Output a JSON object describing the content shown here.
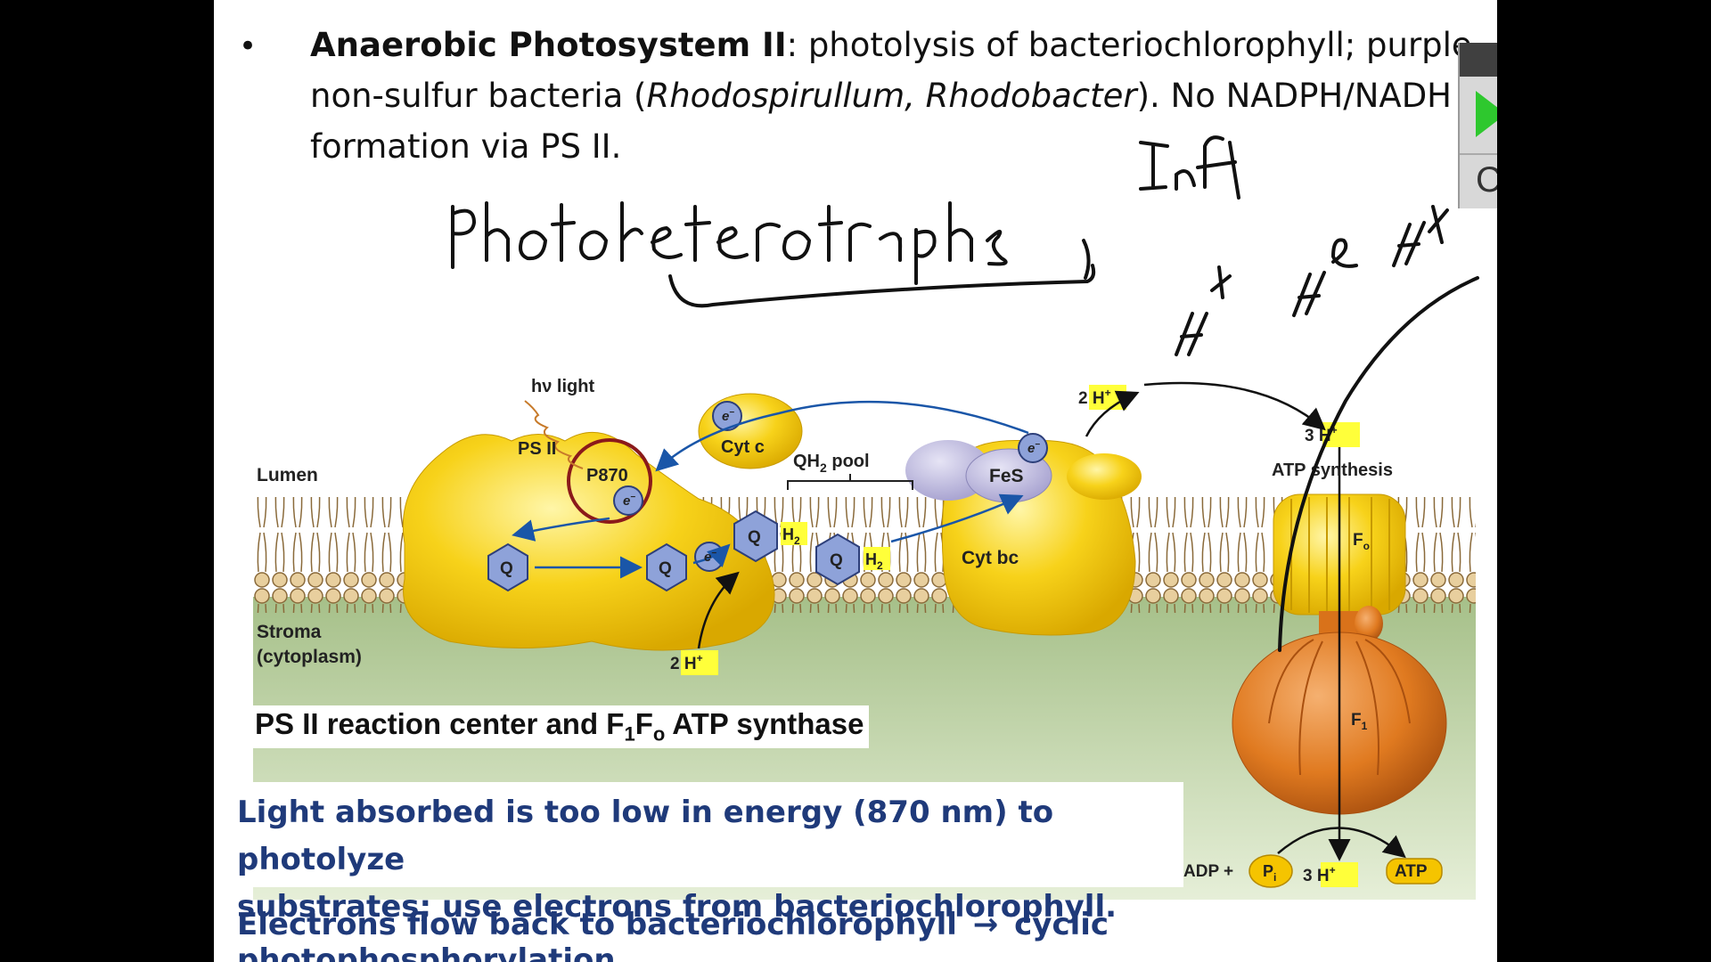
{
  "bullet": {
    "title": "Anaerobic Photosystem II",
    "colon": ":",
    "text_part1": "  photolysis of bacteriochlorophyll; purple non-sulfur bacteria (",
    "genus_italic": "Rhodospirullum, Rhodobacter",
    "text_part2": ").  No NADPH/NADH formation via PS II."
  },
  "diagram": {
    "hv_light": "hν light",
    "ps2": "PS II",
    "p870": "P870",
    "lumen": "Lumen",
    "stroma_1": "Stroma",
    "stroma_2": "(cytoplasm)",
    "cytc": "Cyt c",
    "qh2_pool": "QH",
    "qh2_pool_sub": "2",
    "qh2_pool_word": " pool",
    "fes": "FeS",
    "cytbc": "Cyt bc",
    "q": "Q",
    "h2": "H",
    "h2_sub": "2",
    "electron": "e",
    "electron_sup": "−",
    "two_h": "2 H",
    "three_h": "3 H",
    "h_sup": "+",
    "atp_synthesis": "ATP synthesis",
    "fo": "F",
    "fo_sub": "o",
    "f1": "F",
    "f1_sub": "1",
    "adp": "ADP +",
    "pi": "P",
    "pi_sub": "i",
    "atp": "ATP",
    "colors": {
      "membrane": "#d9b986",
      "protein": "#f5c400",
      "atp_synthase": "#e07a20",
      "arrow_blue": "#1a56a8",
      "p870_ring": "#8b1a1a",
      "stroma_green": "#c8dca8"
    }
  },
  "caption": {
    "part1": "PS II reaction center and F",
    "sub1": "1",
    "part2": "F",
    "sub2": "o",
    "part3": " ATP synthase"
  },
  "note1": {
    "line1": "Light absorbed is too low in energy (870 nm) to photolyze",
    "line2": "substrates; use electrons from bacteriochlorophyll."
  },
  "note2": {
    "part1": "Electrons flow back to bacteriochlorophyll",
    "arrow": "→",
    "part2": "cyclic photophosphorylation."
  },
  "toolbar": {
    "letter": "C"
  }
}
